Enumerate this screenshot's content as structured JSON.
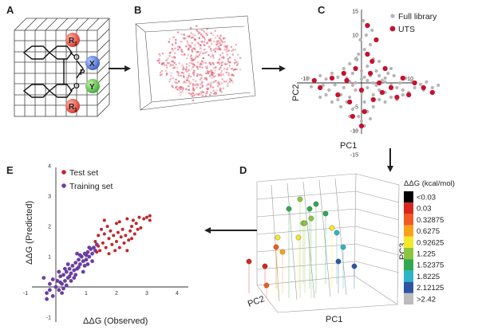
{
  "panels": {
    "a": "A",
    "b": "B",
    "c": "C",
    "d": "D",
    "e": "E"
  },
  "structure": {
    "r1_top": "R",
    "r1_top_sub": "1",
    "r1_bottom": "R",
    "r1_bottom_sub": "1",
    "x_group": "X",
    "y_group": "Y",
    "o_top": "O",
    "o_bottom": "O",
    "p_atom": "P"
  },
  "colors": {
    "arrow": "#222222",
    "grey_point": "#b5b5b5",
    "uts_point": "#c8102e",
    "test_point": "#c0282c",
    "training_point": "#6a3fa0",
    "cloud": "#e0677a"
  },
  "chart_data": [
    {
      "id": "pca-scatter",
      "type": "scatter",
      "xlabel": "PC1",
      "ylabel": "PC2",
      "x_ticks": [
        "-10",
        "10"
      ],
      "y_ticks": [
        "15",
        "10",
        "5",
        "-5",
        "-10",
        "-15"
      ],
      "xlim": [
        -10,
        15
      ],
      "ylim": [
        -15,
        15
      ],
      "legend": [
        "Full library",
        "UTS"
      ],
      "legend_position": "top-right",
      "series": [
        {
          "name": "Full library",
          "points": [
            [
              -9,
              1
            ],
            [
              -8,
              0.5
            ],
            [
              -8.5,
              -0.8
            ],
            [
              -7,
              1.5
            ],
            [
              -6.5,
              -0.5
            ],
            [
              -6,
              0.8
            ],
            [
              -5.5,
              -1.5
            ],
            [
              -5,
              2
            ],
            [
              -4.5,
              -0.4
            ],
            [
              -4,
              1.2
            ],
            [
              -3.5,
              -2.5
            ],
            [
              -3,
              3
            ],
            [
              -3,
              -1
            ],
            [
              -2.5,
              1
            ],
            [
              -2,
              4
            ],
            [
              -2,
              -3
            ],
            [
              -1.5,
              2
            ],
            [
              -1,
              5
            ],
            [
              -1,
              -1.5
            ],
            [
              -0.5,
              6
            ],
            [
              0,
              2.5
            ],
            [
              0,
              -2
            ],
            [
              0.5,
              7
            ],
            [
              0.5,
              -4
            ],
            [
              1,
              3.5
            ],
            [
              1,
              -1
            ],
            [
              1.5,
              8
            ],
            [
              1.5,
              1.5
            ],
            [
              2,
              5
            ],
            [
              2,
              -2.5
            ],
            [
              2.5,
              2.5
            ],
            [
              3,
              -1.5
            ],
            [
              3,
              4.5
            ],
            [
              3.5,
              0.5
            ],
            [
              4,
              1
            ],
            [
              4,
              -2
            ],
            [
              4.5,
              2
            ],
            [
              5,
              -0.5
            ],
            [
              5,
              3
            ],
            [
              5.5,
              1.5
            ],
            [
              6,
              -1
            ],
            [
              6.5,
              0
            ],
            [
              7,
              -1.5
            ],
            [
              7.5,
              1
            ],
            [
              8,
              -2
            ],
            [
              8.5,
              0.5
            ],
            [
              9,
              -1
            ],
            [
              10,
              -0.3
            ],
            [
              10.5,
              -1.5
            ],
            [
              11,
              0.2
            ],
            [
              12,
              -1
            ],
            [
              13,
              -0.5
            ],
            [
              -2.5,
              -4
            ],
            [
              -1.5,
              -5.5
            ],
            [
              -0.5,
              -7
            ],
            [
              0,
              -8
            ],
            [
              0.5,
              -9
            ],
            [
              -1,
              -10
            ],
            [
              1,
              -6
            ],
            [
              1.5,
              -7.5
            ],
            [
              2,
              -5
            ],
            [
              -3.5,
              -5
            ],
            [
              -2,
              -7
            ],
            [
              -4,
              -3.5
            ],
            [
              0.8,
              10
            ],
            [
              1.2,
              12
            ],
            [
              -0.2,
              9
            ],
            [
              2.5,
              9
            ],
            [
              0.3,
              13
            ],
            [
              1.8,
              11
            ],
            [
              -6,
              -2.5
            ],
            [
              -7,
              -3
            ],
            [
              -5,
              -4
            ],
            [
              3,
              -3.5
            ],
            [
              4,
              -4
            ],
            [
              5,
              -3
            ],
            [
              6,
              -3.5
            ],
            [
              7,
              -2.5
            ],
            [
              2,
              0
            ],
            [
              1,
              0.5
            ],
            [
              -1,
              0
            ],
            [
              0,
              0.8
            ],
            [
              3,
              1.5
            ],
            [
              2.5,
              -0.5
            ],
            [
              -1.5,
              -0.5
            ],
            [
              0.5,
              1.2
            ],
            [
              -2,
              0.3
            ],
            [
              4,
              0.2
            ]
          ]
        },
        {
          "name": "UTS",
          "points": [
            [
              -8,
              0.5
            ],
            [
              -7,
              -1
            ],
            [
              -5,
              1
            ],
            [
              -4,
              -2.5
            ],
            [
              -3,
              2
            ],
            [
              -2,
              -4
            ],
            [
              -1,
              3
            ],
            [
              0,
              -1.5
            ],
            [
              0,
              -9
            ],
            [
              1,
              6
            ],
            [
              1,
              12
            ],
            [
              1.5,
              2
            ],
            [
              2,
              -3.5
            ],
            [
              2.5,
              9
            ],
            [
              3,
              0
            ],
            [
              3.5,
              -2
            ],
            [
              4,
              3
            ],
            [
              5,
              -1
            ],
            [
              6,
              -3
            ],
            [
              7,
              1
            ],
            [
              8,
              -2.5
            ],
            [
              9,
              0
            ],
            [
              10.5,
              -1
            ],
            [
              12,
              -2
            ],
            [
              0.5,
              -6
            ],
            [
              -1.5,
              -7
            ],
            [
              1.8,
              4.5
            ],
            [
              -2.5,
              0.5
            ]
          ]
        }
      ]
    },
    {
      "id": "prediction-scatter",
      "type": "scatter",
      "xlabel": "ΔΔG (Observed)",
      "ylabel": "ΔΔG (Predicted)",
      "x_ticks": [
        "-1",
        "1",
        "2",
        "3",
        "4"
      ],
      "y_ticks": [
        "4",
        "3",
        "2",
        "1",
        "-1"
      ],
      "xlim": [
        -1,
        4
      ],
      "ylim": [
        -1,
        4
      ],
      "legend": [
        "Test set",
        "Training set"
      ],
      "legend_position": "top-left",
      "series": [
        {
          "name": "Training set",
          "points": [
            [
              -0.3,
              -0.2
            ],
            [
              -0.2,
              0.1
            ],
            [
              -0.1,
              -0.3
            ],
            [
              0,
              0
            ],
            [
              0.05,
              0.2
            ],
            [
              0.1,
              -0.1
            ],
            [
              0.15,
              0.35
            ],
            [
              0.2,
              0.1
            ],
            [
              0.25,
              0.4
            ],
            [
              0.3,
              0.2
            ],
            [
              0.35,
              0.5
            ],
            [
              0.4,
              0.3
            ],
            [
              0.45,
              0.6
            ],
            [
              0.5,
              0.45
            ],
            [
              0.55,
              0.7
            ],
            [
              0.6,
              0.55
            ],
            [
              0.65,
              0.8
            ],
            [
              0.7,
              0.6
            ],
            [
              0.75,
              0.9
            ],
            [
              0.8,
              0.75
            ],
            [
              0.85,
              1
            ],
            [
              0.9,
              0.85
            ],
            [
              0.95,
              1.1
            ],
            [
              1,
              0.9
            ],
            [
              1.05,
              1.15
            ],
            [
              1.1,
              1
            ],
            [
              1.15,
              1.25
            ],
            [
              1.2,
              1.1
            ],
            [
              1.25,
              1.3
            ],
            [
              1.3,
              1.2
            ],
            [
              1.35,
              1.4
            ],
            [
              -0.4,
              0.3
            ],
            [
              -0.3,
              -0.4
            ],
            [
              0.2,
              -0.2
            ],
            [
              0.35,
              0.05
            ],
            [
              0.6,
              0.3
            ],
            [
              0.9,
              0.5
            ],
            [
              1.05,
              0.75
            ],
            [
              0.4,
              0.75
            ],
            [
              0.7,
              1.1
            ],
            [
              0.3,
              0.6
            ],
            [
              0.5,
              0.2
            ],
            [
              0.1,
              0.5
            ],
            [
              -0.1,
              0.25
            ],
            [
              0.8,
              1.05
            ],
            [
              1.2,
              0.85
            ],
            [
              0.65,
              0.4
            ],
            [
              0.25,
              -0.05
            ],
            [
              0.95,
              0.7
            ],
            [
              1.1,
              1.3
            ],
            [
              -0.2,
              -0.1
            ],
            [
              0.15,
              0.15
            ],
            [
              0.45,
              0.35
            ],
            [
              0.75,
              0.65
            ],
            [
              1,
              1.05
            ]
          ]
        },
        {
          "name": "Test set",
          "points": [
            [
              1.3,
              1.5
            ],
            [
              1.4,
              1.7
            ],
            [
              1.45,
              1.2
            ],
            [
              1.5,
              1.9
            ],
            [
              1.55,
              1.45
            ],
            [
              1.6,
              1.75
            ],
            [
              1.65,
              1.3
            ],
            [
              1.7,
              2
            ],
            [
              1.75,
              1.6
            ],
            [
              1.8,
              1.85
            ],
            [
              1.85,
              1.4
            ],
            [
              1.9,
              1.7
            ],
            [
              1.95,
              1.2
            ],
            [
              2,
              2.1
            ],
            [
              2,
              1.5
            ],
            [
              2.05,
              1.8
            ],
            [
              2.1,
              1.3
            ],
            [
              2.15,
              1.65
            ],
            [
              2.2,
              1.9
            ],
            [
              2.25,
              1.45
            ],
            [
              2.3,
              1.7
            ],
            [
              2.35,
              1.2
            ],
            [
              2.4,
              1.55
            ],
            [
              2.45,
              1.85
            ],
            [
              2.5,
              1.6
            ],
            [
              2.55,
              2.2
            ],
            [
              2.6,
              1.75
            ],
            [
              2.65,
              2.1
            ],
            [
              2.7,
              1.9
            ],
            [
              2.75,
              2.3
            ],
            [
              2.8,
              1.95
            ],
            [
              2.9,
              2.25
            ],
            [
              3,
              2.3
            ],
            [
              3.1,
              2.35
            ],
            [
              3.1,
              2.2
            ],
            [
              2.1,
              2.15
            ],
            [
              1.6,
              2.2
            ],
            [
              1.4,
              1.35
            ],
            [
              1.35,
              1.15
            ],
            [
              2.5,
              2
            ],
            [
              1.75,
              1.1
            ],
            [
              2.35,
              2.25
            ]
          ]
        }
      ]
    },
    {
      "id": "pca-3d",
      "type": "scatter",
      "xlabel": "PC1",
      "ylabel": "PC2",
      "zlabel": "PC3",
      "colorbar_title": "ΔΔG (kcal/mol)",
      "colorbar": [
        {
          "label": "<0.03",
          "color": "#000000"
        },
        {
          "label": "0.03",
          "color": "#d7261e"
        },
        {
          "label": "0.32875",
          "color": "#f05a24"
        },
        {
          "label": "0.6275",
          "color": "#f8a21b"
        },
        {
          "label": "0.92625",
          "color": "#f5e82a"
        },
        {
          "label": "1.225",
          "color": "#8cc63f"
        },
        {
          "label": "1.52375",
          "color": "#2fa84f"
        },
        {
          "label": "1.8225",
          "color": "#2cb5c7"
        },
        {
          "label": "2.12125",
          "color": "#2e55a4"
        },
        {
          "label": ">2.42",
          "color": "#bdbdbd"
        }
      ],
      "points": [
        {
          "x": -3,
          "y": 1,
          "z": 2,
          "band": 1
        },
        {
          "x": -2,
          "y": 0,
          "z": 1,
          "band": 1
        },
        {
          "x": -1,
          "y": 2,
          "z": 0,
          "band": 2
        },
        {
          "x": 0,
          "y": 1,
          "z": 3,
          "band": 3
        },
        {
          "x": 1,
          "y": 0,
          "z": 4,
          "band": 4
        },
        {
          "x": 1,
          "y": -1,
          "z": 5,
          "band": 5
        },
        {
          "x": 2,
          "y": 1,
          "z": 6,
          "band": 5
        },
        {
          "x": 2,
          "y": 0,
          "z": 7,
          "band": 6
        },
        {
          "x": 3,
          "y": -1,
          "z": 6,
          "band": 6
        },
        {
          "x": 3,
          "y": 1,
          "z": 8,
          "band": 6
        },
        {
          "x": 4,
          "y": 0,
          "z": 5,
          "band": 4
        },
        {
          "x": 4,
          "y": -1,
          "z": 4,
          "band": 7
        },
        {
          "x": 5,
          "y": 0,
          "z": 3,
          "band": 7
        },
        {
          "x": 5,
          "y": 1,
          "z": 2,
          "band": 8
        },
        {
          "x": 6,
          "y": 0,
          "z": 1,
          "band": 8
        },
        {
          "x": 2,
          "y": 2,
          "z": 9,
          "band": 5
        },
        {
          "x": 0,
          "y": 2,
          "z": 5,
          "band": 4
        },
        {
          "x": -1,
          "y": 0,
          "z": 3,
          "band": 2
        },
        {
          "x": 3,
          "y": 2,
          "z": 7,
          "band": 5
        },
        {
          "x": 1,
          "y": 2,
          "z": 8,
          "band": 6
        }
      ]
    }
  ]
}
